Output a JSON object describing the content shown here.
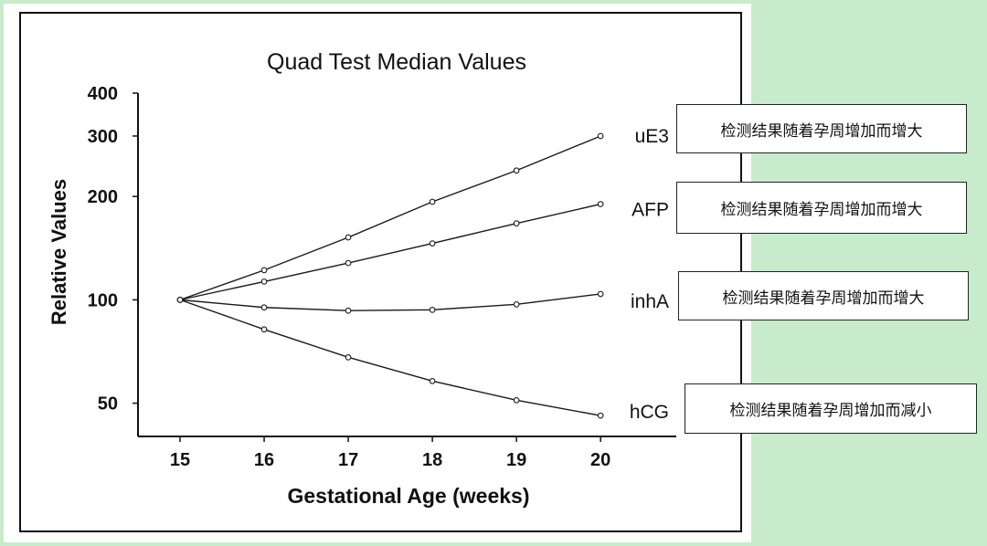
{
  "chart_data": {
    "type": "line",
    "title": "Quad Test Median Values",
    "xlabel": "Gestational Age (weeks)",
    "ylabel": "Relative Values",
    "y_scale": "log",
    "ylim": [
      40,
      400
    ],
    "xlim": [
      14.5,
      20.9
    ],
    "x": [
      15,
      16,
      17,
      18,
      19,
      20
    ],
    "x_ticks": [
      "15",
      "16",
      "17",
      "18",
      "19",
      "20"
    ],
    "y_ticks": [
      {
        "value": 50,
        "label": "50"
      },
      {
        "value": 100,
        "label": "100"
      },
      {
        "value": 200,
        "label": "200"
      },
      {
        "value": 300,
        "label": "300"
      },
      {
        "value": 400,
        "label": "400"
      }
    ],
    "grid": false,
    "series": [
      {
        "name": "uE3",
        "values": [
          100,
          122,
          152,
          193,
          238,
          300
        ]
      },
      {
        "name": "AFP",
        "values": [
          100,
          113,
          128,
          146,
          167,
          190
        ]
      },
      {
        "name": "inhA",
        "values": [
          100,
          95,
          93,
          93.5,
          97,
          104
        ]
      },
      {
        "name": "hCG",
        "values": [
          100,
          82,
          68,
          58,
          51,
          46
        ]
      }
    ],
    "line_color": "#1a1a1a"
  },
  "annotations": [
    {
      "series": "uE3",
      "text": "检测结果随着孕周增加而增大"
    },
    {
      "series": "AFP",
      "text": "检测结果随着孕周增加而增大"
    },
    {
      "series": "inhA",
      "text": "检测结果随着孕周增加而增大"
    },
    {
      "series": "hCG",
      "text": "检测结果随着孕周增加而减小"
    }
  ]
}
